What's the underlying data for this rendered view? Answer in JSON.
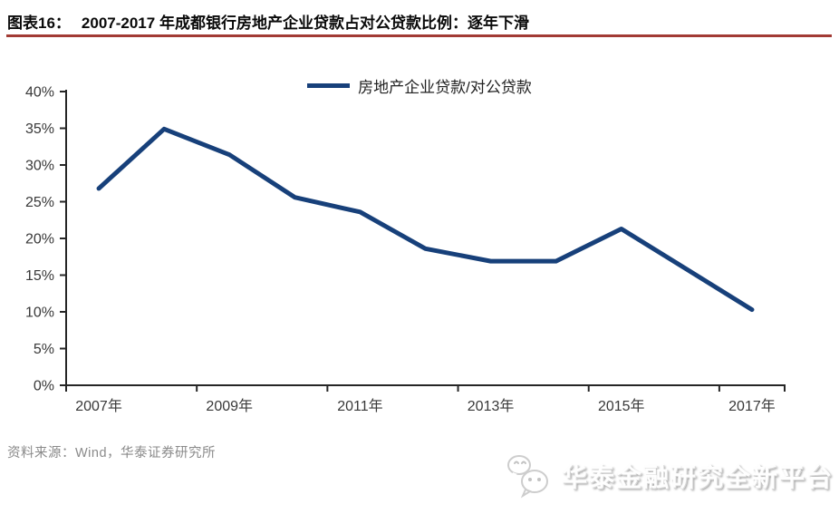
{
  "header": {
    "figure_label": "图表16：",
    "title": "2007-2017 年成都银行房地产企业贷款占对公贷款比例：逐年下滑",
    "rule_color": "#a23b35"
  },
  "chart_data": {
    "type": "line",
    "title": "2007-2017 年成都银行房地产企业贷款占对公贷款比例：逐年下滑",
    "legend": [
      "房地产企业贷款/对公贷款"
    ],
    "legend_position": "top-center",
    "categories": [
      "2007年",
      "2008年",
      "2009年",
      "2010年",
      "2011年",
      "2012年",
      "2013年",
      "2014年",
      "2015年",
      "2016年",
      "2017年"
    ],
    "x_tick_labels": [
      "2007年",
      "2009年",
      "2011年",
      "2013年",
      "2015年",
      "2017年"
    ],
    "series": [
      {
        "name": "房地产企业贷款/对公贷款",
        "values": [
          26.8,
          34.9,
          31.4,
          25.6,
          23.6,
          18.6,
          16.9,
          16.9,
          21.3,
          15.8,
          10.3
        ]
      }
    ],
    "unit": "%",
    "ylim": [
      0,
      40
    ],
    "y_tick_step": 5,
    "y_tick_labels": [
      "0%",
      "5%",
      "10%",
      "15%",
      "20%",
      "25%",
      "30%",
      "35%",
      "40%"
    ],
    "grid": false,
    "line_color": "#17407a",
    "axis_color": "#262626",
    "tick_label_color": "#383838"
  },
  "footer": {
    "source": "资料来源：Wind，华泰证券研究所"
  },
  "watermark": {
    "icon": "wechat-icon",
    "text": "华泰金融研究全新平台"
  }
}
